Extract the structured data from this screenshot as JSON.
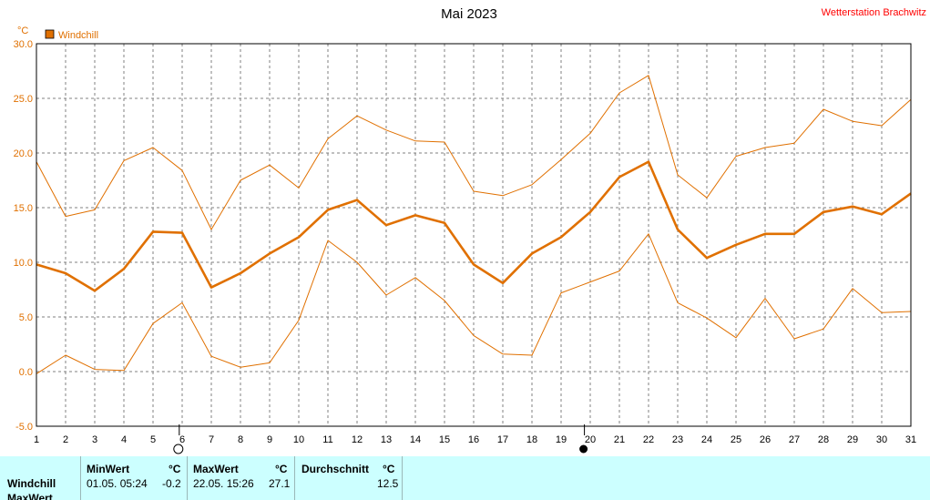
{
  "header": {
    "title": "Mai 2023",
    "station": "Wetterstation Brachwitz"
  },
  "colors": {
    "series": "#e07000",
    "grid": "#808080",
    "panel": "#ccffff"
  },
  "chart_data": {
    "type": "line",
    "unit_label": "°C",
    "legend": "Windchill",
    "legend_position": "top-left",
    "grid": true,
    "x": [
      1,
      2,
      3,
      4,
      5,
      6,
      7,
      8,
      9,
      10,
      11,
      12,
      13,
      14,
      15,
      16,
      17,
      18,
      19,
      20,
      21,
      22,
      23,
      24,
      25,
      26,
      27,
      28,
      29,
      30,
      31
    ],
    "xlim": [
      1,
      31
    ],
    "ylim": [
      -5,
      30
    ],
    "yticks": [
      "30.0",
      "25.0",
      "20.0",
      "15.0",
      "10.0",
      "5.0",
      "0.0",
      "-5.0"
    ],
    "series": [
      {
        "name": "Windchill",
        "role": "mean",
        "values": [
          9.8,
          9.0,
          7.4,
          9.4,
          12.8,
          12.7,
          7.7,
          9.0,
          10.8,
          12.3,
          14.8,
          15.7,
          13.4,
          14.3,
          13.6,
          9.8,
          8.1,
          10.8,
          12.3,
          14.6,
          17.8,
          19.2,
          13.0,
          10.4,
          11.6,
          12.6,
          12.6,
          14.6,
          15.1,
          14.4,
          16.3
        ]
      },
      {
        "role": "max",
        "values": [
          19.2,
          14.2,
          14.8,
          19.3,
          20.5,
          18.4,
          13.0,
          17.5,
          18.9,
          16.8,
          21.3,
          23.4,
          22.1,
          21.1,
          21.0,
          16.5,
          16.1,
          17.1,
          19.4,
          21.8,
          25.5,
          27.1,
          18.0,
          15.9,
          19.7,
          20.5,
          20.9,
          24.0,
          22.9,
          22.5,
          24.9
        ]
      },
      {
        "role": "min",
        "values": [
          -0.2,
          1.5,
          0.2,
          0.1,
          4.4,
          6.3,
          1.4,
          0.4,
          0.8,
          4.7,
          12.0,
          10.0,
          7.0,
          8.6,
          6.5,
          3.3,
          1.6,
          1.5,
          7.2,
          8.2,
          9.2,
          12.6,
          6.3,
          4.9,
          3.1,
          6.7,
          3.0,
          3.9,
          7.6,
          5.4,
          5.5
        ]
      }
    ],
    "moon_phases": [
      {
        "day": 5.9,
        "type": "full"
      },
      {
        "day": 19.8,
        "type": "new"
      }
    ]
  },
  "stats_panel": {
    "row_label": "Windchill",
    "row_label2": "MaxWert",
    "min": {
      "header": "MinWert",
      "unit": "°C",
      "datetime": "01.05.  05:24",
      "value": "-0.2"
    },
    "max": {
      "header": "MaxWert",
      "unit": "°C",
      "datetime": "22.05.  15:26",
      "value": "27.1"
    },
    "avg": {
      "header": "Durchschnitt",
      "unit": "°C",
      "value": "12.5"
    }
  }
}
